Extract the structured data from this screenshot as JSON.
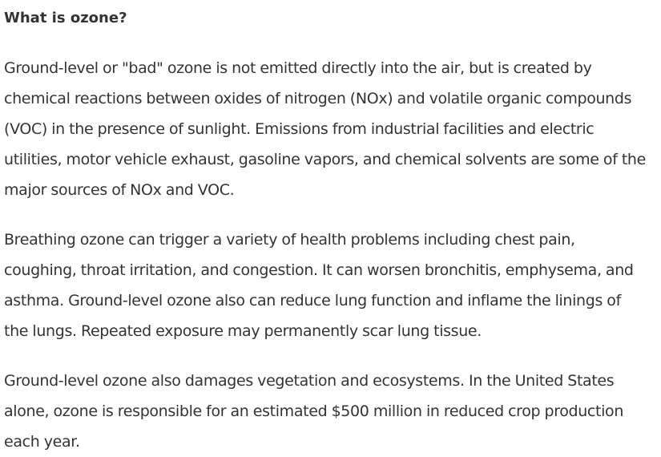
{
  "article": {
    "heading": "What is ozone?",
    "paragraphs": [
      "Ground-level or \"bad\" ozone is not emitted directly into the air, but is created by chemical reactions between oxides of nitrogen (NOx) and volatile organic compounds (VOC) in the presence of sunlight. Emissions from industrial facilities and electric utilities, motor vehicle exhaust, gasoline vapors, and chemical solvents are some of the major sources of NOx and VOC.",
      "Breathing ozone can trigger a variety of health problems including chest pain, coughing, throat irritation, and congestion. It can worsen bronchitis, emphysema, and asthma. Ground-level ozone also can reduce lung function and inflame the linings of the lungs. Repeated exposure may permanently scar lung tissue.",
      "Ground-level ozone also damages vegetation and ecosystems. In the United States alone, ozone is responsible for an estimated $500 million in reduced crop production each year."
    ]
  }
}
